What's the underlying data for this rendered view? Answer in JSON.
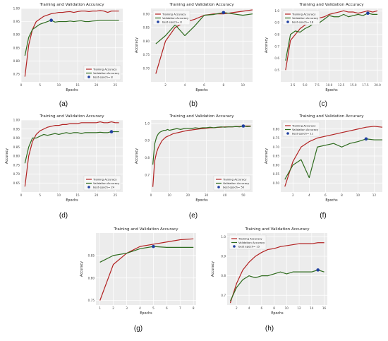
{
  "colors": {
    "training": "#b22222",
    "validation": "#2e6b1e",
    "best_marker": "#1f3fa0",
    "plot_bg": "#ececec",
    "grid": "#ffffff"
  },
  "chart_data": [
    {
      "type": "line",
      "label": "(a)",
      "title": "Training and Validation Accuracy",
      "xlabel": "Epochs",
      "ylabel": "",
      "xlim": [
        0,
        27
      ],
      "ylim": [
        0.72,
        1.0
      ],
      "xticks": [
        0,
        5,
        10,
        15,
        20,
        25
      ],
      "yticks": [
        0.75,
        0.8,
        0.85,
        0.9,
        0.95,
        1.0
      ],
      "grid": true,
      "legend_position": "lower-right",
      "legend": [
        "Training Accuracy",
        "Validation Accuracy",
        "best epoch= 8"
      ],
      "x": [
        1,
        2,
        3,
        4,
        5,
        6,
        7,
        8,
        9,
        10,
        11,
        12,
        13,
        14,
        15,
        16,
        17,
        18,
        19,
        20,
        21,
        22,
        23,
        24,
        25,
        26
      ],
      "series": [
        {
          "name": "Training Accuracy",
          "values": [
            0.74,
            0.86,
            0.92,
            0.95,
            0.96,
            0.97,
            0.975,
            0.98,
            0.982,
            0.985,
            0.985,
            0.987,
            0.988,
            0.985,
            0.988,
            0.99,
            0.99,
            0.988,
            0.99,
            0.99,
            0.992,
            0.99,
            0.985,
            0.99,
            0.99,
            0.99
          ]
        },
        {
          "name": "Validation Accuracy",
          "values": [
            0.82,
            0.89,
            0.92,
            0.93,
            0.94,
            0.945,
            0.95,
            0.955,
            0.948,
            0.95,
            0.95,
            0.95,
            0.952,
            0.95,
            0.952,
            0.953,
            0.95,
            0.95,
            0.952,
            0.953,
            0.955,
            0.955,
            0.955,
            0.955,
            0.955,
            0.955
          ]
        }
      ],
      "best": {
        "x": 8,
        "y": 0.955
      }
    },
    {
      "type": "line",
      "label": "(b)",
      "title": "Training and Validation Accuracy",
      "xlabel": "Epochs",
      "ylabel": "Accuracy",
      "xlim": [
        0.5,
        11
      ],
      "ylim": [
        0.65,
        0.92
      ],
      "xticks": [
        2,
        4,
        6,
        8,
        10
      ],
      "yticks": [
        0.7,
        0.75,
        0.8,
        0.85,
        0.9
      ],
      "grid": true,
      "legend_position": "upper-left",
      "legend": [
        "Training Accuracy",
        "Validation Accuracy",
        "best epoch= 8"
      ],
      "x": [
        1,
        2,
        3,
        4,
        5,
        6,
        7,
        8,
        9,
        10,
        11
      ],
      "series": [
        {
          "name": "Training Accuracy",
          "values": [
            0.68,
            0.8,
            0.85,
            0.87,
            0.88,
            0.895,
            0.9,
            0.9,
            0.905,
            0.91,
            0.915
          ]
        },
        {
          "name": "Validation Accuracy",
          "values": [
            0.79,
            0.82,
            0.86,
            0.82,
            0.855,
            0.895,
            0.898,
            0.905,
            0.9,
            0.895,
            0.9
          ]
        }
      ],
      "best": {
        "x": 8,
        "y": 0.905
      }
    },
    {
      "type": "line",
      "label": "(c)",
      "title": "Training and Validation Accuracy",
      "xlabel": "Epochs",
      "ylabel": "Accuracy",
      "xlim": [
        0,
        21
      ],
      "ylim": [
        0.4,
        1.02
      ],
      "xticks": [
        2.5,
        5.0,
        7.5,
        10.0,
        12.5,
        15.0,
        17.5,
        20.0
      ],
      "yticks": [
        0.5,
        0.6,
        0.7,
        0.8,
        0.9,
        1.0
      ],
      "grid": true,
      "legend_position": "upper-left",
      "legend": [
        "Training Accuracy",
        "Validation Accuracy",
        "best epoch= 18"
      ],
      "x": [
        1,
        2,
        3,
        4,
        5,
        6,
        7,
        8,
        9,
        10,
        11,
        12,
        13,
        14,
        15,
        16,
        17,
        18,
        19,
        20
      ],
      "series": [
        {
          "name": "Training Accuracy",
          "values": [
            0.5,
            0.75,
            0.8,
            0.85,
            0.88,
            0.9,
            0.92,
            0.94,
            0.95,
            0.97,
            0.98,
            0.99,
            1.0,
            0.99,
            0.99,
            0.98,
            0.99,
            1.0,
            0.99,
            1.0
          ]
        },
        {
          "name": "Validation Accuracy",
          "values": [
            0.58,
            0.8,
            0.83,
            0.82,
            0.85,
            0.87,
            0.9,
            0.9,
            0.93,
            0.96,
            0.95,
            0.95,
            0.97,
            0.95,
            0.96,
            0.97,
            0.96,
            0.98,
            0.97,
            0.97
          ]
        }
      ],
      "best": {
        "x": 18,
        "y": 0.98
      }
    },
    {
      "type": "line",
      "label": "(d)",
      "title": "Training and Validation Accuracy",
      "xlabel": "Epochs",
      "ylabel": "Accuracy",
      "xlim": [
        0,
        27
      ],
      "ylim": [
        0.6,
        1.0
      ],
      "xticks": [
        0,
        5,
        10,
        15,
        20,
        25
      ],
      "yticks": [
        0.65,
        0.7,
        0.75,
        0.8,
        0.85,
        0.9,
        0.95,
        1.0
      ],
      "grid": true,
      "legend_position": "lower-right",
      "legend": [
        "Training Accuracy",
        "Validation Accuracy",
        "best epoch= 24"
      ],
      "x": [
        1,
        2,
        3,
        4,
        5,
        6,
        7,
        8,
        9,
        10,
        11,
        12,
        13,
        14,
        15,
        16,
        17,
        18,
        19,
        20,
        21,
        22,
        23,
        24,
        25,
        26
      ],
      "series": [
        {
          "name": "Training Accuracy",
          "values": [
            0.63,
            0.8,
            0.88,
            0.92,
            0.94,
            0.95,
            0.96,
            0.965,
            0.97,
            0.97,
            0.975,
            0.975,
            0.98,
            0.98,
            0.98,
            0.985,
            0.985,
            0.985,
            0.985,
            0.985,
            0.99,
            0.985,
            0.985,
            0.99,
            0.985,
            0.985
          ]
        },
        {
          "name": "Validation Accuracy",
          "values": [
            0.76,
            0.85,
            0.9,
            0.9,
            0.91,
            0.92,
            0.915,
            0.92,
            0.925,
            0.92,
            0.925,
            0.93,
            0.925,
            0.93,
            0.93,
            0.925,
            0.93,
            0.93,
            0.93,
            0.93,
            0.932,
            0.93,
            0.93,
            0.935,
            0.935,
            0.935
          ]
        }
      ],
      "best": {
        "x": 24,
        "y": 0.935
      }
    },
    {
      "type": "line",
      "label": "(e)",
      "title": "Training and Validation Accuracy",
      "xlabel": "Epochs",
      "ylabel": "Accuracy",
      "xlim": [
        0,
        55
      ],
      "ylim": [
        0.6,
        1.02
      ],
      "xticks": [
        0,
        10,
        20,
        30,
        40,
        50
      ],
      "yticks": [
        0.7,
        0.8,
        0.9,
        1.0
      ],
      "grid": true,
      "legend_position": "lower-right",
      "legend": [
        "Training Accuracy",
        "Validation Accuracy",
        "best epoch= 50"
      ],
      "x": [
        1,
        2,
        3,
        4,
        5,
        6,
        7,
        8,
        9,
        10,
        12,
        14,
        16,
        18,
        20,
        22,
        24,
        26,
        28,
        30,
        32,
        34,
        36,
        38,
        40,
        42,
        44,
        46,
        48,
        50,
        52,
        54
      ],
      "series": [
        {
          "name": "Training Accuracy",
          "values": [
            0.63,
            0.78,
            0.83,
            0.86,
            0.88,
            0.9,
            0.91,
            0.92,
            0.925,
            0.93,
            0.94,
            0.945,
            0.95,
            0.955,
            0.96,
            0.962,
            0.965,
            0.968,
            0.97,
            0.972,
            0.975,
            0.975,
            0.977,
            0.978,
            0.98,
            0.98,
            0.98,
            0.982,
            0.982,
            0.985,
            0.985,
            0.985
          ]
        },
        {
          "name": "Validation Accuracy",
          "values": [
            0.76,
            0.88,
            0.92,
            0.94,
            0.95,
            0.955,
            0.96,
            0.96,
            0.965,
            0.96,
            0.965,
            0.97,
            0.965,
            0.97,
            0.972,
            0.97,
            0.975,
            0.972,
            0.975,
            0.975,
            0.978,
            0.975,
            0.978,
            0.98,
            0.978,
            0.98,
            0.98,
            0.982,
            0.98,
            0.985,
            0.982,
            0.983
          ]
        }
      ],
      "best": {
        "x": 50,
        "y": 0.985
      }
    },
    {
      "type": "line",
      "label": "(f)",
      "title": "Training and Validation Accuracy",
      "xlabel": "Epochs",
      "ylabel": "Accuracy",
      "xlim": [
        0.5,
        13
      ],
      "ylim": [
        0.45,
        0.85
      ],
      "xticks": [
        2,
        4,
        6,
        8,
        10,
        12
      ],
      "yticks": [
        0.5,
        0.55,
        0.6,
        0.65,
        0.7,
        0.75,
        0.8
      ],
      "grid": true,
      "legend_position": "upper-left",
      "legend": [
        "Training Accuracy",
        "Validation Accuracy",
        "best epoch= 11"
      ],
      "x": [
        1,
        2,
        3,
        4,
        5,
        6,
        7,
        8,
        9,
        10,
        11,
        12,
        13
      ],
      "series": [
        {
          "name": "Training Accuracy",
          "values": [
            0.48,
            0.62,
            0.7,
            0.73,
            0.75,
            0.76,
            0.77,
            0.78,
            0.79,
            0.8,
            0.81,
            0.815,
            0.81
          ]
        },
        {
          "name": "Validation Accuracy",
          "values": [
            0.52,
            0.6,
            0.63,
            0.53,
            0.7,
            0.71,
            0.72,
            0.7,
            0.72,
            0.73,
            0.745,
            0.74,
            0.74
          ]
        }
      ],
      "best": {
        "x": 11,
        "y": 0.745
      }
    },
    {
      "type": "line",
      "label": "(g)",
      "title": "Training and Validation Accuracy",
      "xlabel": "Epochs",
      "ylabel": "Accuracy",
      "xlim": [
        0.7,
        8.2
      ],
      "ylim": [
        0.74,
        0.9
      ],
      "xticks": [
        1,
        2,
        3,
        4,
        5,
        6,
        7,
        8
      ],
      "yticks": [
        0.75,
        0.8,
        0.85
      ],
      "grid": true,
      "legend_position": "none",
      "legend": [],
      "x": [
        1,
        2,
        3,
        4,
        5,
        6,
        7,
        8
      ],
      "series": [
        {
          "name": "Training Accuracy",
          "values": [
            0.75,
            0.83,
            0.855,
            0.87,
            0.875,
            0.88,
            0.885,
            0.887
          ]
        },
        {
          "name": "Validation Accuracy",
          "values": [
            0.835,
            0.85,
            0.855,
            0.865,
            0.87,
            0.868,
            0.868,
            0.868
          ]
        }
      ],
      "best": {
        "x": 5,
        "y": 0.87
      }
    },
    {
      "type": "line",
      "label": "(h)",
      "title": "Training and Validation Accuracy",
      "xlabel": "Epochs",
      "ylabel": "Accuracy",
      "xlim": [
        0.5,
        16.5
      ],
      "ylim": [
        0.65,
        1.02
      ],
      "xticks": [
        2,
        4,
        6,
        8,
        10,
        12,
        14,
        16
      ],
      "yticks": [
        0.7,
        0.8,
        0.9,
        1.0
      ],
      "grid": true,
      "legend_position": "upper-left",
      "legend": [
        "Training Accuracy",
        "Validation Accuracy",
        "best epoch= 15"
      ],
      "x": [
        1,
        2,
        3,
        4,
        5,
        6,
        7,
        8,
        9,
        10,
        11,
        12,
        13,
        14,
        15,
        16
      ],
      "series": [
        {
          "name": "Training Accuracy",
          "values": [
            0.66,
            0.76,
            0.83,
            0.87,
            0.9,
            0.92,
            0.935,
            0.94,
            0.95,
            0.955,
            0.96,
            0.965,
            0.965,
            0.965,
            0.97,
            0.97
          ]
        },
        {
          "name": "Validation Accuracy",
          "values": [
            0.67,
            0.74,
            0.78,
            0.8,
            0.79,
            0.8,
            0.8,
            0.81,
            0.82,
            0.81,
            0.82,
            0.82,
            0.82,
            0.82,
            0.83,
            0.82
          ]
        }
      ],
      "best": {
        "x": 15,
        "y": 0.83
      }
    }
  ]
}
